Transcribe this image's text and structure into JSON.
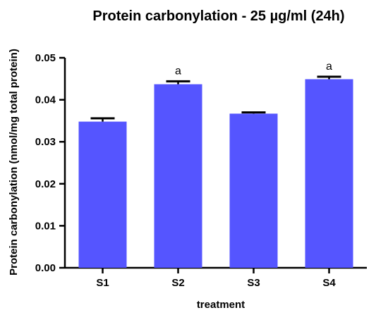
{
  "chart_data": {
    "type": "bar",
    "title": "Protein carbonylation - 25 µg/ml (24h)",
    "xlabel": "treatment",
    "ylabel": "Protein carbonylation (nmol/mg total protein)",
    "categories": [
      "S1",
      "S2",
      "S3",
      "S4"
    ],
    "values": [
      0.0348,
      0.0437,
      0.0367,
      0.0449
    ],
    "errors": [
      0.0008,
      0.0007,
      0.0003,
      0.0006
    ],
    "annotations": [
      "",
      "a",
      "",
      "a"
    ],
    "ylim": [
      0,
      0.05
    ],
    "yticks": [
      0.0,
      0.01,
      0.02,
      0.03,
      0.04,
      0.05
    ],
    "ytick_labels": [
      "0.00",
      "0.01",
      "0.02",
      "0.03",
      "0.04",
      "0.05"
    ],
    "grid": false,
    "colors": {
      "bar": "#5555ff",
      "axis": "#000000"
    }
  }
}
